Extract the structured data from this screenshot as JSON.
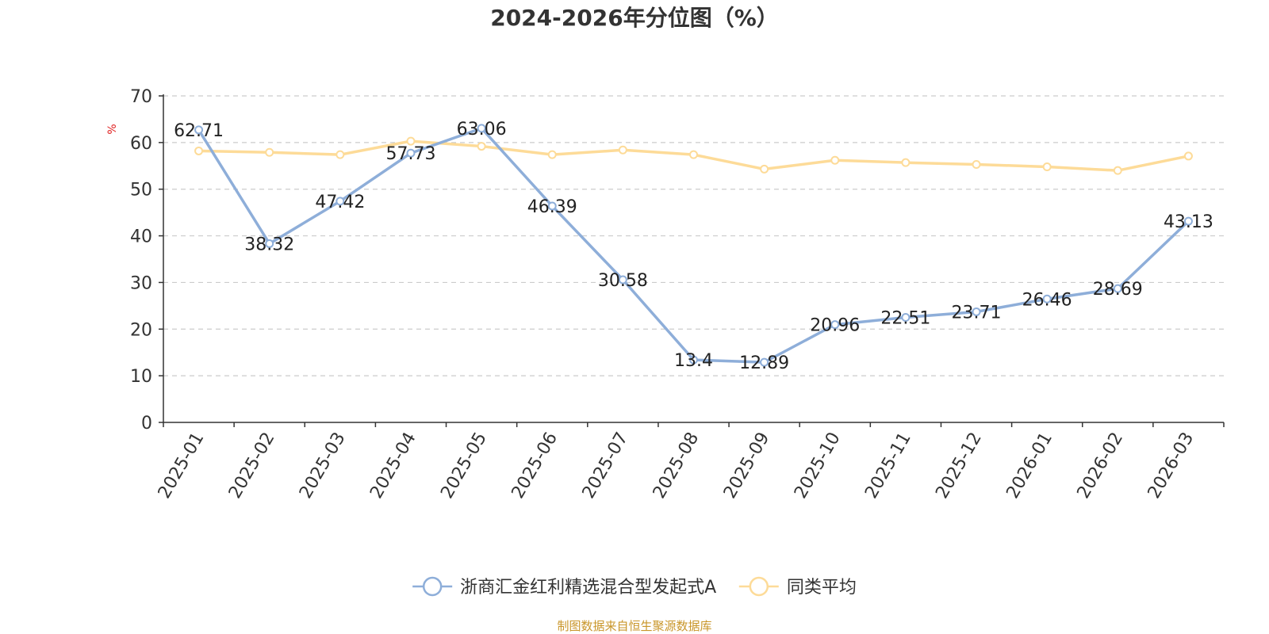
{
  "chart_data": {
    "type": "line",
    "title": "2024-2026年分位图（%）",
    "ylabel": "%",
    "xlabel": "",
    "ylim": [
      0,
      70
    ],
    "yticks": [
      0,
      10,
      20,
      30,
      40,
      50,
      60,
      70
    ],
    "categories": [
      "2025-01",
      "2025-02",
      "2025-03",
      "2025-04",
      "2025-05",
      "2025-06",
      "2025-07",
      "2025-08",
      "2025-09",
      "2025-10",
      "2025-11",
      "2025-12",
      "2026-01",
      "2026-02",
      "2026-03"
    ],
    "grid": true,
    "legend_position": "bottom-center",
    "series": [
      {
        "name": "浙商汇金红利精选混合型发起式A",
        "color": "#8eaed9",
        "values": [
          62.71,
          38.32,
          47.42,
          57.73,
          63.06,
          46.39,
          30.58,
          13.4,
          12.89,
          20.96,
          22.51,
          23.71,
          26.46,
          28.69,
          43.13
        ],
        "labels": [
          "62.71",
          "38.32",
          "47.42",
          "57.73",
          "63.06",
          "46.39",
          "30.58",
          "13.4",
          "12.89",
          "20.96",
          "22.51",
          "23.71",
          "26.46",
          "28.69",
          "43.13"
        ]
      },
      {
        "name": "同类平均",
        "color": "#fddb98",
        "values": [
          58.2,
          57.9,
          57.4,
          60.3,
          59.2,
          57.4,
          58.4,
          57.4,
          54.3,
          56.2,
          55.7,
          55.3,
          54.8,
          54.0,
          57.1
        ]
      }
    ],
    "source": "制图数据来自恒生聚源数据库"
  }
}
